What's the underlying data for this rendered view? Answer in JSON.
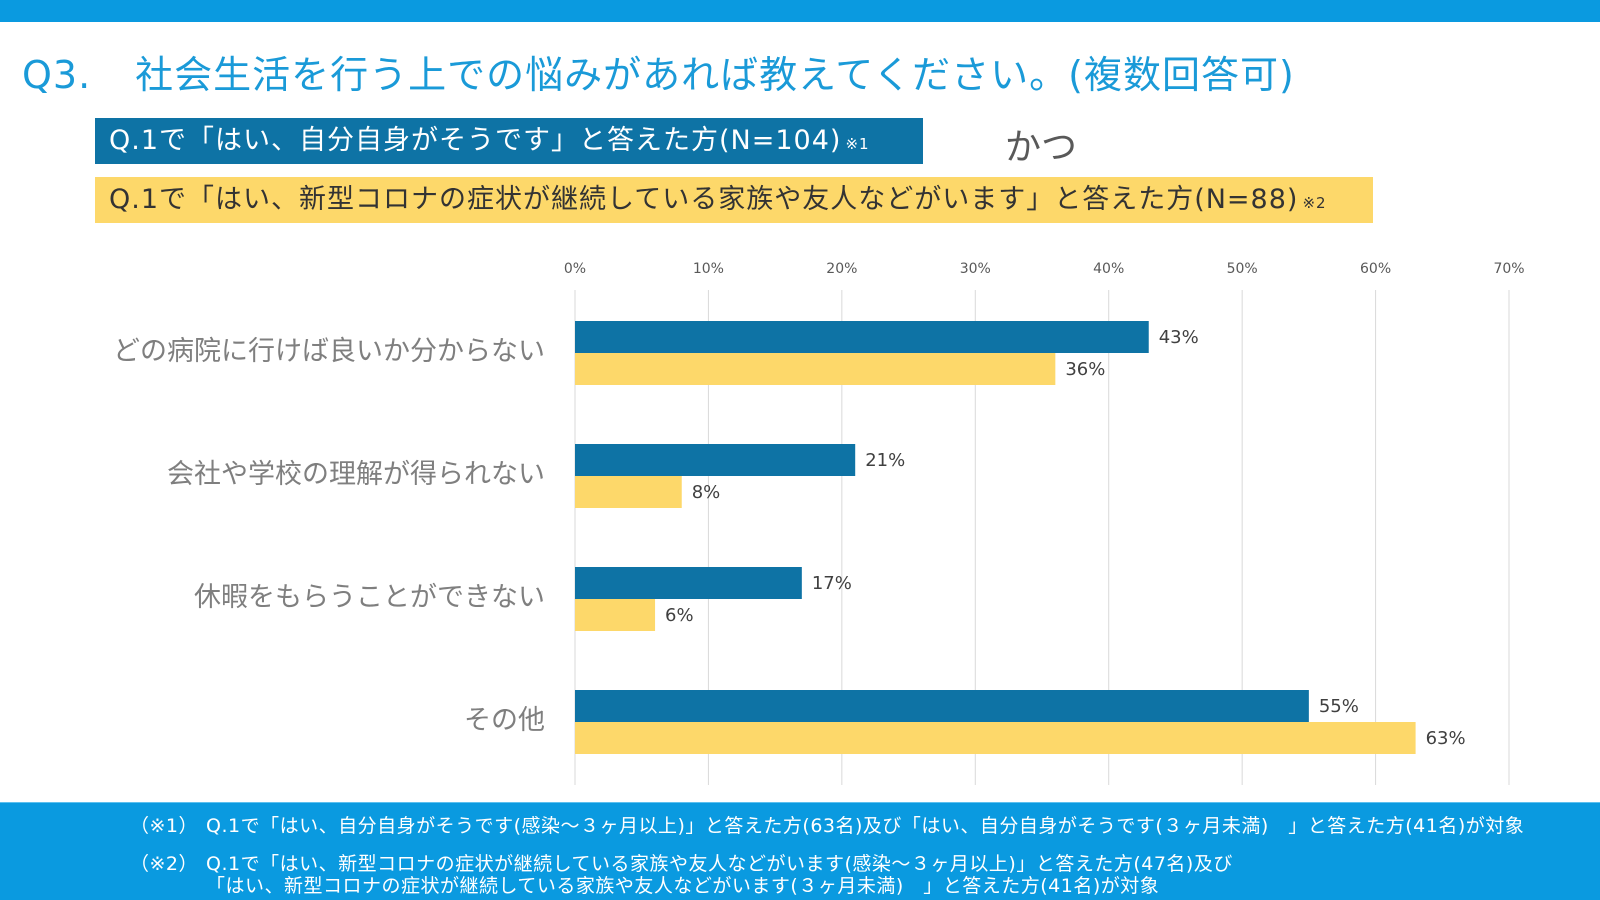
{
  "header": {
    "question_number": "Q3.",
    "question_text": "社会生活を行う上での悩みがあれば教えてください。(複数回答可)"
  },
  "legend": {
    "series_a": {
      "label": "Q.1で「はい、自分自身がそうです」と答えた方(N=104)",
      "note": "※1",
      "color": "#0e73a5"
    },
    "series_b": {
      "label": "Q.1で「はい、新型コロナの症状が継続している家族や友人などがいます」と答えた方(N=88)",
      "note": "※2",
      "color": "#fdd86a"
    },
    "connector": "かつ"
  },
  "chart_data": {
    "type": "bar",
    "orientation": "horizontal",
    "categories": [
      "どの病院に行けば良いか分からない",
      "会社や学校の理解が得られない",
      "休暇をもらうことができない",
      "その他"
    ],
    "series": [
      {
        "name": "Q.1で「はい、自分自身がそうです」と答えた方(N=104)",
        "values": [
          43,
          21,
          17,
          55
        ],
        "labels": [
          "43%",
          "21%",
          "17%",
          "55%"
        ],
        "color": "#0e73a5"
      },
      {
        "name": "Q.1で「はい、新型コロナの症状が継続している家族や友人などがいます」と答えた方(N=88)",
        "values": [
          36,
          8,
          6,
          63
        ],
        "labels": [
          "36%",
          "8%",
          "6%",
          "63%"
        ],
        "color": "#fdd86a"
      }
    ],
    "xlim": [
      0,
      70
    ],
    "xticks": [
      0,
      10,
      20,
      30,
      40,
      50,
      60,
      70
    ],
    "xtick_labels": [
      "0%",
      "10%",
      "20%",
      "30%",
      "40%",
      "50%",
      "60%",
      "70%"
    ],
    "grid": true,
    "axis_position": "top"
  },
  "footnotes": {
    "note1_tag": "（※1）",
    "note1_text": "Q.1で「はい、自分自身がそうです(感染～３ヶ月以上)」と答えた方(63名)及び「はい、自分自身がそうです(３ヶ月未満)　」と答えた方(41名)が対象",
    "note2_tag": "（※2）",
    "note2_text_line1": "Q.1で「はい、新型コロナの症状が継続している家族や友人などがいます(感染～３ヶ月以上)」と答えた方(47名)及び",
    "note2_text_line2": "「はい、新型コロナの症状が継続している家族や友人などがいます(３ヶ月未満)　」と答えた方(41名)が対象"
  }
}
